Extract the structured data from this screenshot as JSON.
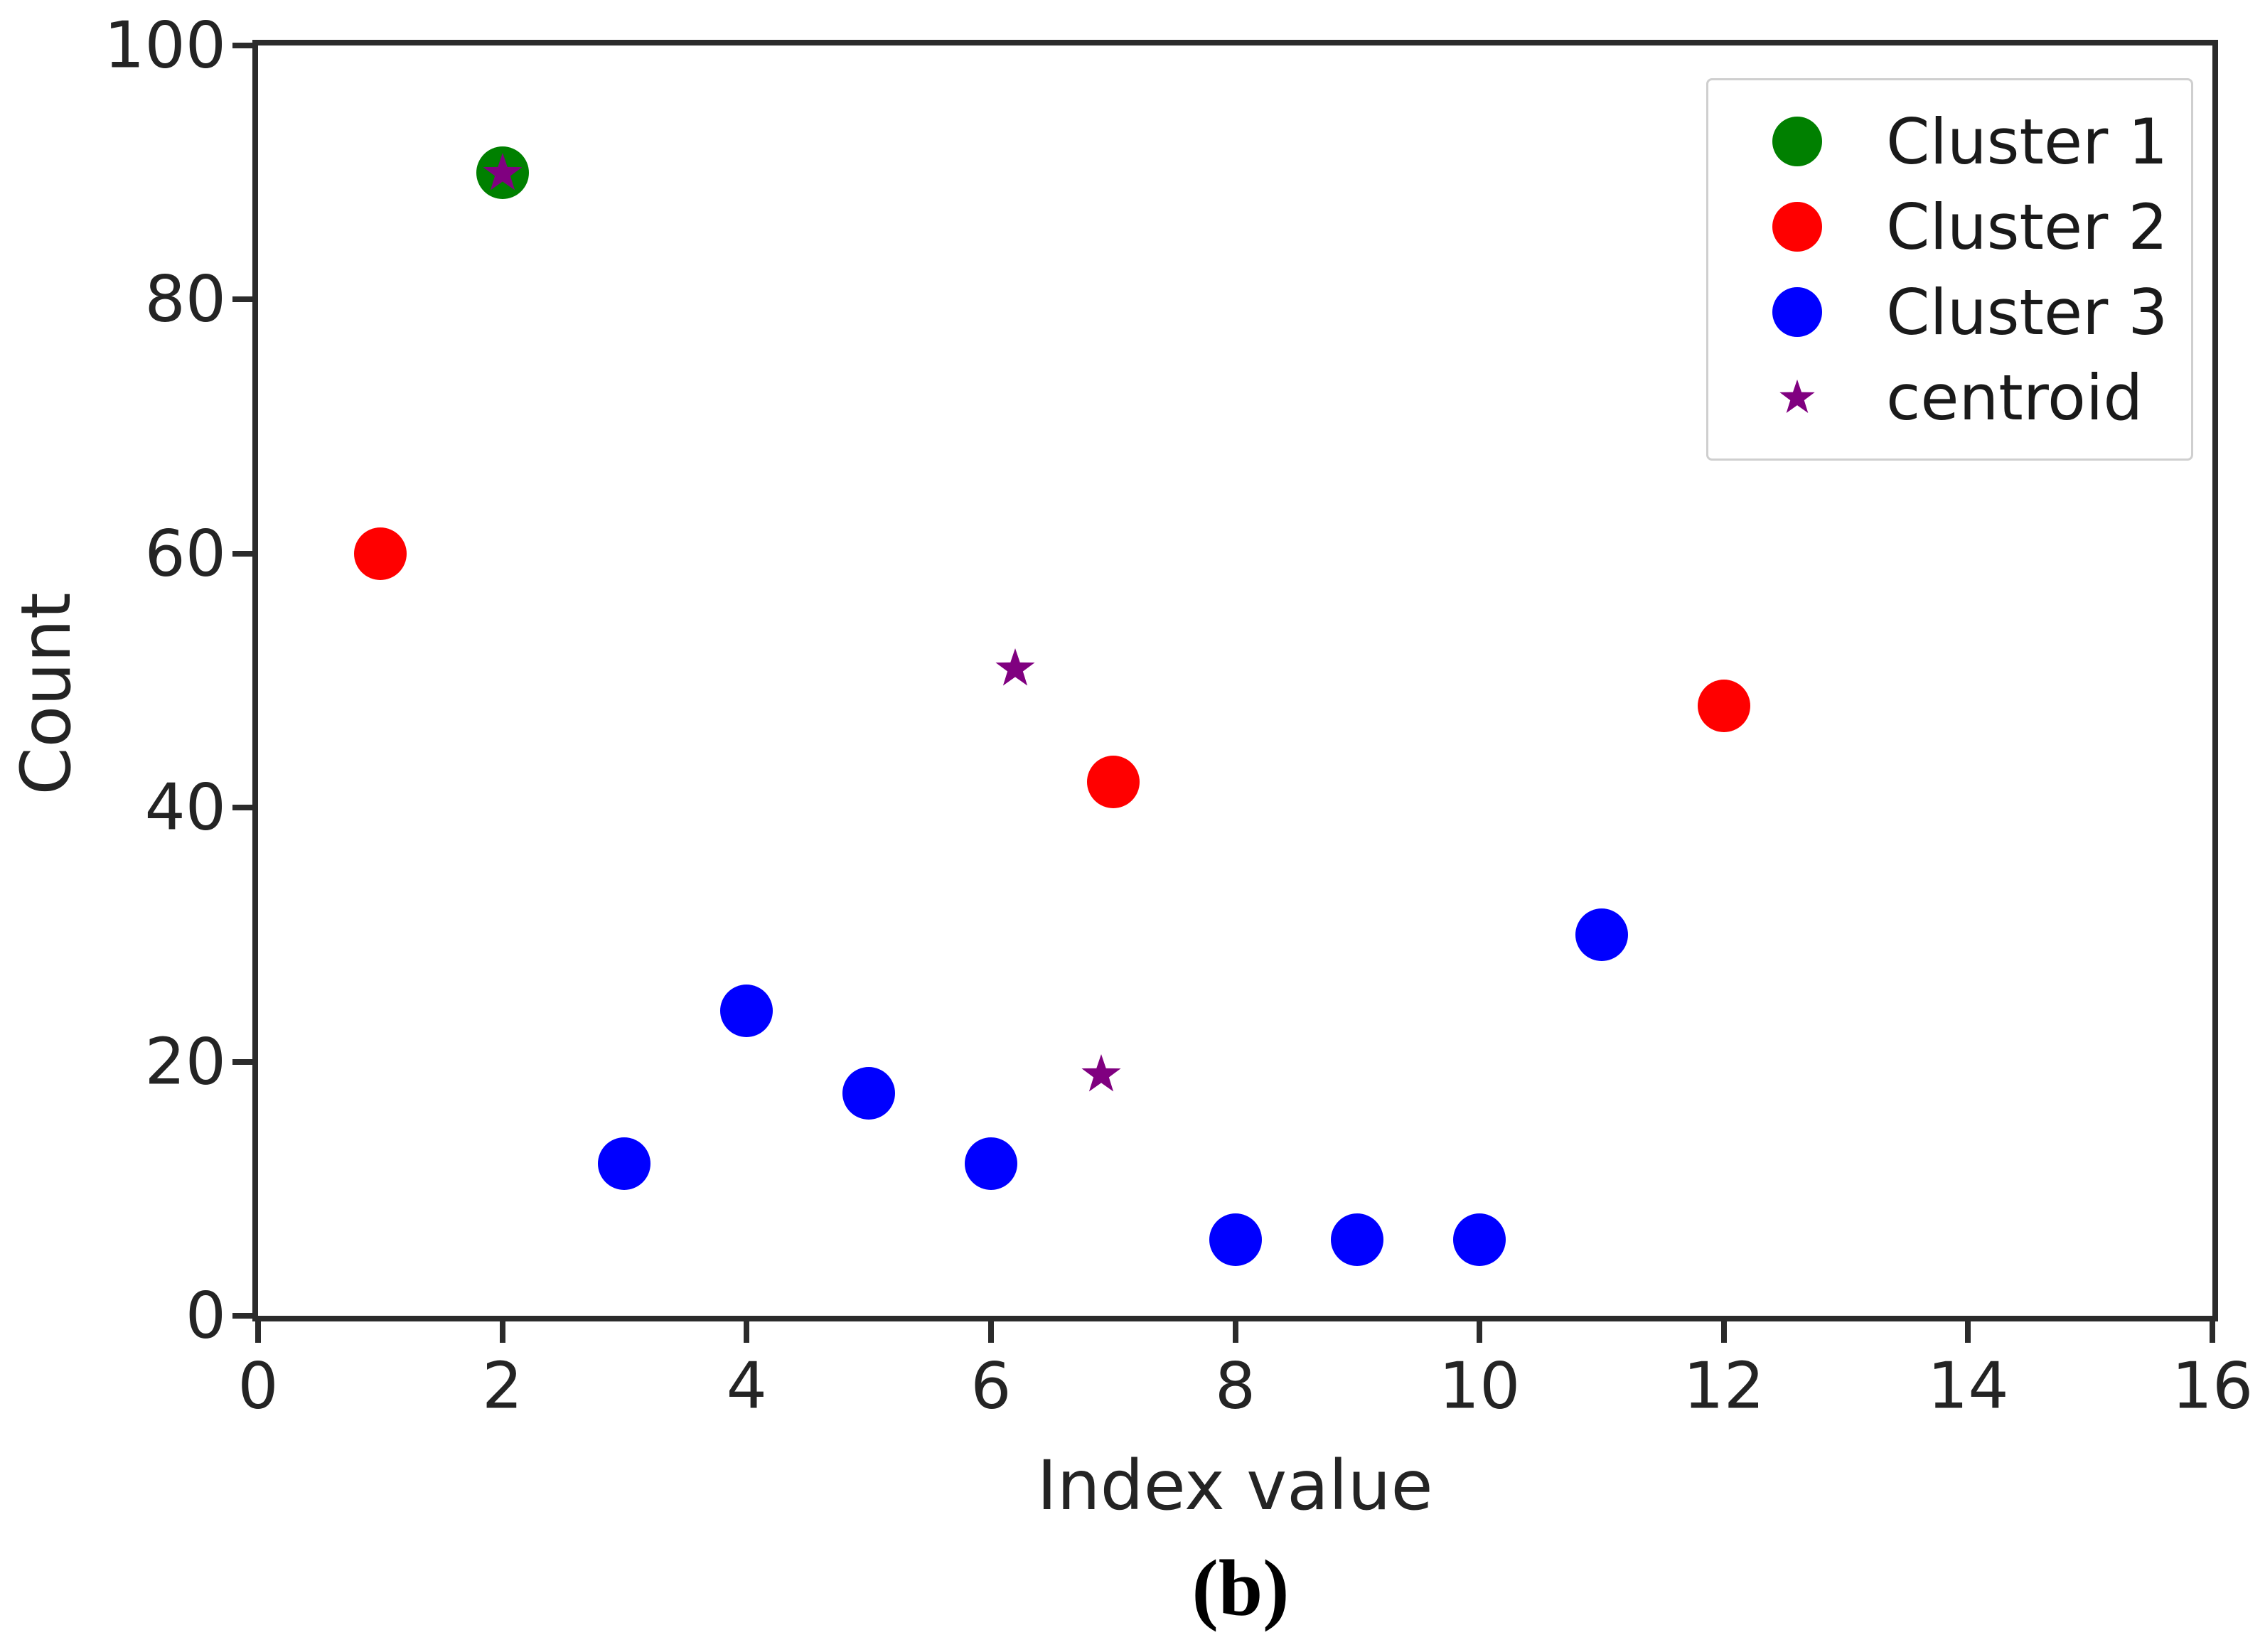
{
  "figure": {
    "caption": "(b)"
  },
  "chart_data": {
    "type": "scatter",
    "title": "",
    "xlabel": "Index value",
    "ylabel": "Count",
    "xlim": [
      0,
      16
    ],
    "ylim": [
      0,
      100
    ],
    "xticks": [
      0,
      2,
      4,
      6,
      8,
      10,
      12,
      14,
      16
    ],
    "yticks": [
      0,
      20,
      40,
      60,
      80,
      100
    ],
    "grid": false,
    "legend_position": "upper right",
    "series": [
      {
        "name": "Cluster 1",
        "marker": "circle",
        "color": "#008000",
        "points": [
          [
            2,
            90
          ]
        ]
      },
      {
        "name": "Cluster 2",
        "marker": "circle",
        "color": "#ff0000",
        "points": [
          [
            1,
            60
          ],
          [
            7,
            42
          ],
          [
            12,
            48
          ]
        ]
      },
      {
        "name": "Cluster 3",
        "marker": "circle",
        "color": "#0000ff",
        "points": [
          [
            3,
            12
          ],
          [
            4,
            24
          ],
          [
            5,
            17.5
          ],
          [
            6,
            12
          ],
          [
            8,
            6
          ],
          [
            9,
            6
          ],
          [
            10,
            6
          ],
          [
            11,
            30
          ]
        ]
      },
      {
        "name": "centroid",
        "marker": "star",
        "color": "#800080",
        "points": [
          [
            2,
            90
          ],
          [
            6.2,
            51
          ],
          [
            6.9,
            19
          ]
        ]
      }
    ]
  }
}
